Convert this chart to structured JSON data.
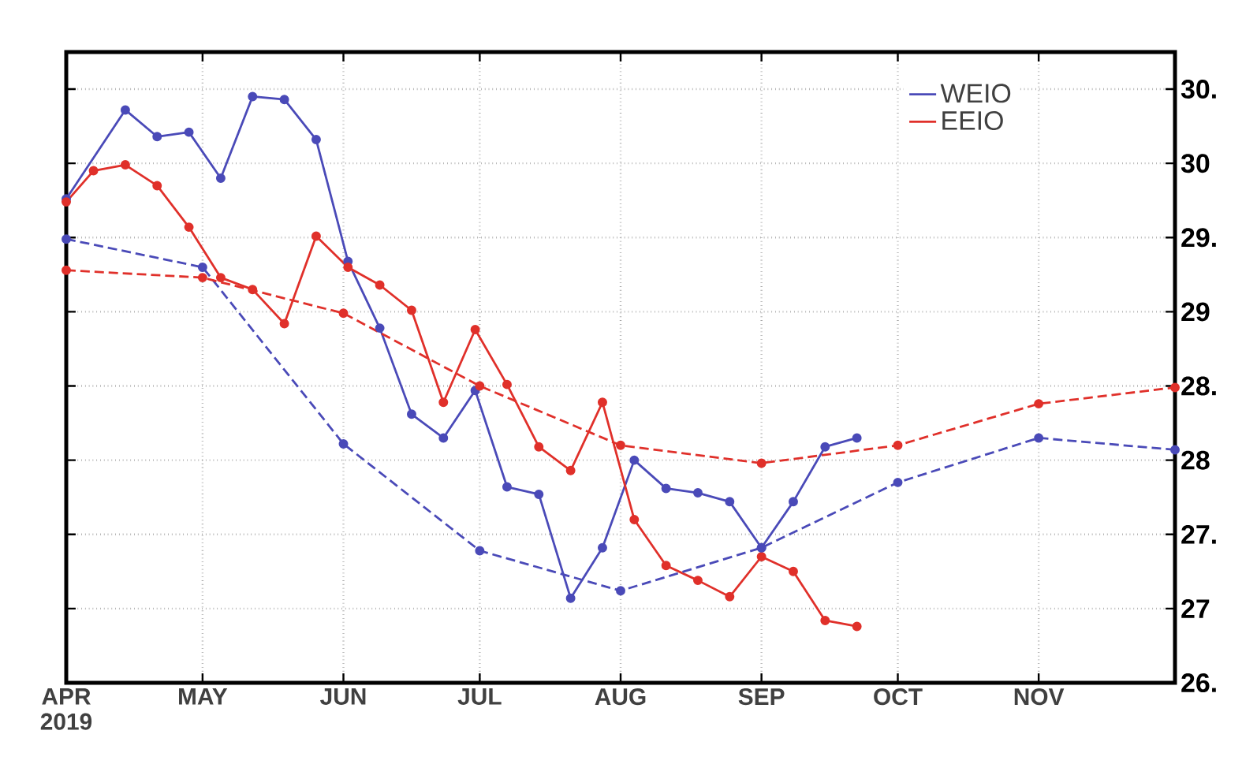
{
  "chart_data": {
    "type": "line",
    "x": [
      "2019-04-01",
      "2019-04-14",
      "2019-04-21",
      "2019-04-28",
      "2019-05-05",
      "2019-05-12",
      "2019-05-19",
      "2019-05-26",
      "2019-06-02",
      "2019-06-09",
      "2019-06-16",
      "2019-06-23",
      "2019-06-30",
      "2019-07-07",
      "2019-07-14",
      "2019-07-21",
      "2019-07-28",
      "2019-08-04",
      "2019-08-11",
      "2019-08-18",
      "2019-08-25",
      "2019-09-01",
      "2019-09-08",
      "2019-09-15",
      "2019-09-22"
    ],
    "series": [
      {
        "name": "WEIO",
        "color": "#4a4ab8",
        "line_style": "solid",
        "values": [
          29.76,
          30.36,
          30.18,
          30.21,
          29.9,
          30.45,
          30.43,
          30.16,
          29.34,
          28.89,
          28.31,
          28.15,
          28.47,
          27.82,
          27.77,
          27.07,
          27.41,
          28.0,
          27.81,
          27.78,
          27.72,
          27.41,
          27.72,
          28.09,
          28.15
        ]
      },
      {
        "name": "EEIO",
        "color": "#e0302a",
        "line_style": "solid",
        "x": [
          "2019-04-01",
          "2019-04-07",
          "2019-04-14",
          "2019-04-21",
          "2019-04-28",
          "2019-05-05",
          "2019-05-12",
          "2019-05-19",
          "2019-05-26",
          "2019-06-02",
          "2019-06-09",
          "2019-06-16",
          "2019-06-23",
          "2019-06-30",
          "2019-07-07",
          "2019-07-14",
          "2019-07-21",
          "2019-07-28",
          "2019-08-04",
          "2019-08-11",
          "2019-08-18",
          "2019-08-25",
          "2019-09-01",
          "2019-09-08",
          "2019-09-15",
          "2019-09-22"
        ],
        "values": [
          29.74,
          29.95,
          29.99,
          29.85,
          29.57,
          29.23,
          29.15,
          28.92,
          29.51,
          29.3,
          29.18,
          29.01,
          28.39,
          28.88,
          28.51,
          28.09,
          27.93,
          28.39,
          27.6,
          27.29,
          27.19,
          27.08,
          27.35,
          27.25,
          26.92,
          26.88
        ]
      },
      {
        "color": "#4a4ab8",
        "line_style": "dashed",
        "x": [
          "2019-04-01",
          "2019-05-01",
          "2019-06-01",
          "2019-07-01",
          "2019-08-01",
          "2019-09-01",
          "2019-10-01",
          "2019-11-01",
          "2019-12-01"
        ],
        "values": [
          29.49,
          29.3,
          28.11,
          27.39,
          27.12,
          27.41,
          27.85,
          28.15,
          28.07
        ]
      },
      {
        "color": "#e0302a",
        "line_style": "dashed",
        "x": [
          "2019-04-01",
          "2019-05-01",
          "2019-06-01",
          "2019-07-01",
          "2019-08-01",
          "2019-09-01",
          "2019-10-01",
          "2019-11-01",
          "2019-12-01"
        ],
        "values": [
          29.28,
          29.23,
          28.99,
          28.5,
          28.1,
          27.98,
          28.1,
          28.38,
          28.49
        ]
      }
    ],
    "xlim": [
      "2019-04-01",
      "2019-12-01"
    ],
    "xticks": [
      {
        "value": "2019-04-01",
        "label": "APR 2019"
      },
      {
        "value": "2019-05-01",
        "label": "MAY"
      },
      {
        "value": "2019-06-01",
        "label": "JUN"
      },
      {
        "value": "2019-07-01",
        "label": "JUL"
      },
      {
        "value": "2019-08-01",
        "label": "AUG"
      },
      {
        "value": "2019-09-01",
        "label": "SEP"
      },
      {
        "value": "2019-10-01",
        "label": "OCT"
      },
      {
        "value": "2019-11-01",
        "label": "NOV"
      }
    ],
    "ylim": [
      26.5,
      30.75
    ],
    "yticks": [
      {
        "value": 26.5,
        "label": "26."
      },
      {
        "value": 27,
        "label": "27"
      },
      {
        "value": 27.5,
        "label": "27."
      },
      {
        "value": 28,
        "label": "28"
      },
      {
        "value": 28.5,
        "label": "28."
      },
      {
        "value": 29,
        "label": "29"
      },
      {
        "value": 29.5,
        "label": "29."
      },
      {
        "value": 30,
        "label": "30"
      },
      {
        "value": 30.5,
        "label": "30."
      }
    ],
    "grid": true,
    "legend": "top right",
    "marker": "circle"
  }
}
